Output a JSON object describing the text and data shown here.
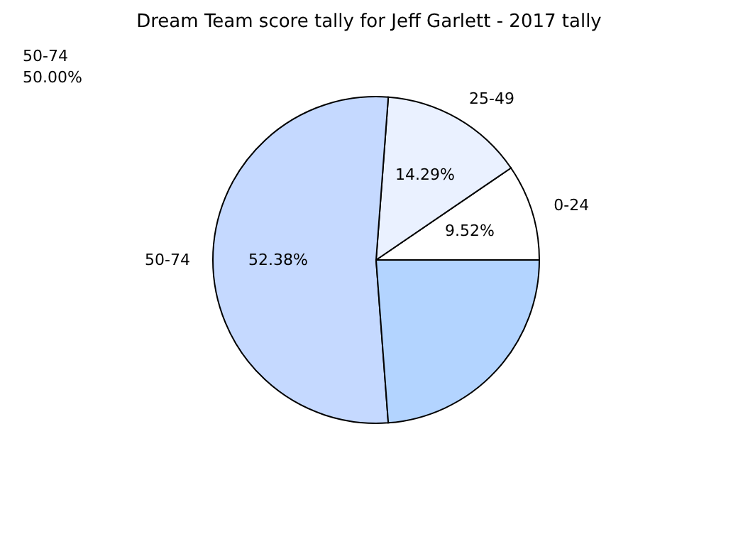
{
  "chart_data": {
    "type": "pie",
    "title": "Dream Team score tally for Jeff Garlett - 2017 tally",
    "categories": [
      "0-24",
      "25-49",
      "50-74",
      null
    ],
    "values": [
      9.52,
      14.29,
      52.38,
      23.81
    ],
    "value_labels": [
      "9.52%",
      "14.29%",
      "52.38%",
      null
    ],
    "colors": [
      "#ffffff",
      "#eaf1ff",
      "#c5d9ff",
      "#b3d4ff"
    ],
    "annotations": [
      "50-74",
      "50.00%"
    ]
  }
}
